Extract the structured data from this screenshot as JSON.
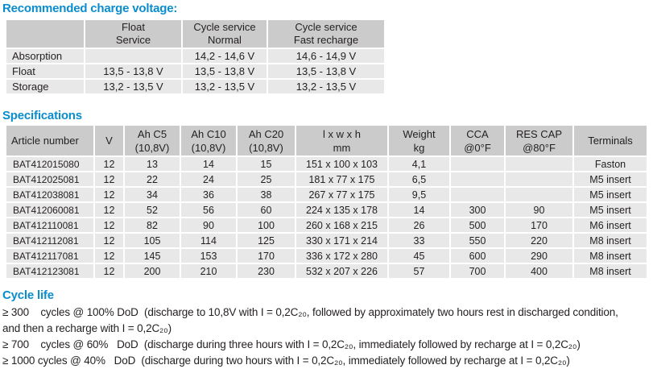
{
  "page": {
    "accent_blue": "#0a8ccd",
    "header_gray": "#cbcbcb",
    "row_gray": "#e8e8e8",
    "text_color": "#231f20"
  },
  "charge_voltage": {
    "title": "Recommended charge voltage:",
    "columns": [
      "",
      "Float\nService",
      "Cycle service\nNormal",
      "Cycle service\nFast recharge"
    ],
    "rows": [
      [
        "Absorption",
        "",
        "14,2 - 14,6 V",
        "14,6 - 14,9 V"
      ],
      [
        "Float",
        "13,5 - 13,8 V",
        "13,5 - 13,8 V",
        "13,5 - 13,8 V"
      ],
      [
        "Storage",
        "13,2 - 13,5 V",
        "13,2 - 13,5 V",
        "13,2 - 13,5 V"
      ]
    ]
  },
  "specifications": {
    "title": "Specifications",
    "columns": [
      "Article number",
      "V",
      "Ah C5\n(10,8V)",
      "Ah C10\n(10,8V)",
      "Ah C20\n(10,8V)",
      "l x w x h\nmm",
      "Weight\nkg",
      "CCA\n@0°F",
      "RES CAP\n@80°F",
      "Terminals"
    ],
    "rows": [
      [
        "BAT412015080",
        "12",
        "13",
        "14",
        "15",
        "151 x 100 x 103",
        "4,1",
        "",
        "",
        "Faston"
      ],
      [
        "BAT412025081",
        "12",
        "22",
        "24",
        "25",
        "181 x 77 x 175",
        "6,5",
        "",
        "",
        "M5 insert"
      ],
      [
        "BAT412038081",
        "12",
        "34",
        "36",
        "38",
        "267 x 77 x 175",
        "9,5",
        "",
        "",
        "M5 insert"
      ],
      [
        "BAT412060081",
        "12",
        "52",
        "56",
        "60",
        "224 x 135 x 178",
        "14",
        "300",
        "90",
        "M5 insert"
      ],
      [
        "BAT412110081",
        "12",
        "82",
        "90",
        "100",
        "260 x 168 x 215",
        "26",
        "500",
        "170",
        "M6 insert"
      ],
      [
        "BAT412112081",
        "12",
        "105",
        "114",
        "125",
        "330 x 171 x 214",
        "33",
        "550",
        "220",
        "M8 insert"
      ],
      [
        "BAT412117081",
        "12",
        "145",
        "153",
        "170",
        "336 x 172 x 280",
        "45",
        "600",
        "290",
        "M8 insert"
      ],
      [
        "BAT412123081",
        "12",
        "200",
        "210",
        "230",
        "532 x 207 x 226",
        "57",
        "700",
        "400",
        "M8 insert"
      ]
    ]
  },
  "cycle_life": {
    "title": "Cycle life",
    "lines": [
      "≥ 300    cycles @ 100% DoD  (discharge to 10,8V with I = 0,2C₂₀, followed by approximately two hours rest in discharged condition,",
      "and then a recharge with I = 0,2C₂₀)",
      "≥ 700    cycles @ 60%   DoD  (discharge during three hours with I = 0,2C₂₀, immediately followed by recharge at I = 0,2C₂₀)",
      "≥ 1000 cycles @ 40%   DoD  (discharge during two hours with I = 0,2C₂₀, immediately followed by recharge at I = 0,2C₂₀)"
    ]
  }
}
